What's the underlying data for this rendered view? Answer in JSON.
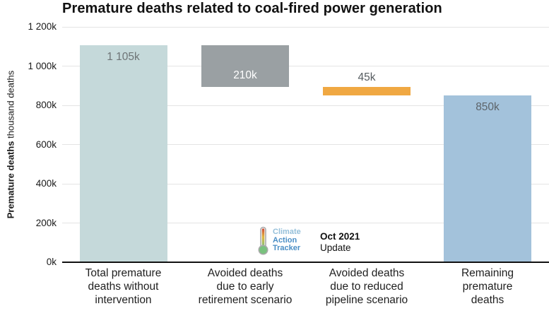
{
  "title": "Premature deaths related to coal-fired power generation",
  "y_axis_label": {
    "bold": "Premature deaths",
    "regular": " thousand deaths"
  },
  "chart_data": {
    "type": "bar",
    "subtype": "waterfall",
    "title": "Premature deaths related to coal-fired power generation",
    "ylabel": "Premature deaths (thousand deaths)",
    "ylim": [
      0,
      1200
    ],
    "grid": true,
    "yticks": [
      {
        "v": 0,
        "label": "0k"
      },
      {
        "v": 200,
        "label": "200k"
      },
      {
        "v": 400,
        "label": "400k"
      },
      {
        "v": 600,
        "label": "600k"
      },
      {
        "v": 800,
        "label": "800k"
      },
      {
        "v": 1000,
        "label": "1 000k"
      },
      {
        "v": 1200,
        "label": "1 200k"
      }
    ],
    "bars": [
      {
        "category_lines": [
          "Total premature",
          "deaths without",
          "intervention"
        ],
        "start": 0,
        "end": 1105,
        "value": 1105,
        "value_label": "1 105k",
        "value_label_pos": "inside-top",
        "value_label_color": "#6e7476",
        "color": "#c5d9da"
      },
      {
        "category_lines": [
          "Avoided deaths",
          "due to early",
          "retirement scenario"
        ],
        "start": 895,
        "end": 1105,
        "value": 210,
        "value_label": "210k",
        "value_label_pos": "inside-bottom",
        "value_label_color": "#ffffff",
        "color": "#9aa0a3"
      },
      {
        "category_lines": [
          "Avoided deaths",
          "due to reduced",
          "pipeline scenario"
        ],
        "start": 850,
        "end": 895,
        "value": 45,
        "value_label": "45k",
        "value_label_pos": "above",
        "value_label_color": "#565c60",
        "color": "#f0a842"
      },
      {
        "category_lines": [
          "Remaining",
          "premature",
          "deaths"
        ],
        "start": 0,
        "end": 850,
        "value": 850,
        "value_label": "850k",
        "value_label_pos": "inside-top",
        "value_label_color": "#5d646a",
        "color": "#a3c2db"
      }
    ]
  },
  "branding": {
    "logo": {
      "line1": "Climate",
      "line2": "Action",
      "line3": "Tracker",
      "icon": "thermometer-icon",
      "color_light_blue": "#96c0da",
      "color_blue": "#4a8ec5",
      "thermo_red": "#cf4a38",
      "thermo_yellow": "#e0b63e",
      "thermo_green": "#79c27e"
    },
    "update": {
      "bold": "Oct 2021",
      "regular": "Update"
    }
  },
  "colors": {
    "grid": "#e4e4e4",
    "axis": "#111111",
    "text": "#1f1f1f",
    "background": "#ffffff"
  }
}
